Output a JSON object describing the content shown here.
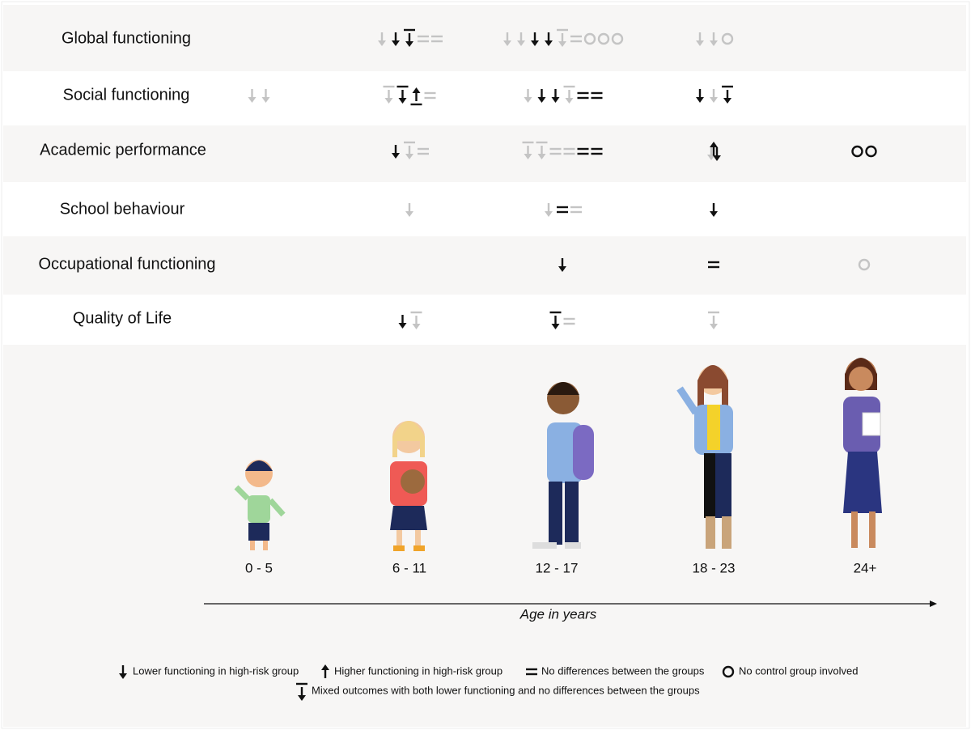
{
  "rows": [
    "Global functioning",
    "Social functioning",
    "Academic performance",
    "School behaviour",
    "Occupational functioning",
    "Quality of Life"
  ],
  "ages": [
    "0 - 5",
    "6 - 11",
    "12 - 17",
    "18 - 23",
    "24+"
  ],
  "axis_label": "Age in years",
  "legend": [
    "Lower functioning in high-risk group",
    "Higher functioning in high-risk group",
    "No differences between the groups",
    "No control group involved",
    "Mixed outcomes with both lower functioning and no differences between the groups"
  ]
}
